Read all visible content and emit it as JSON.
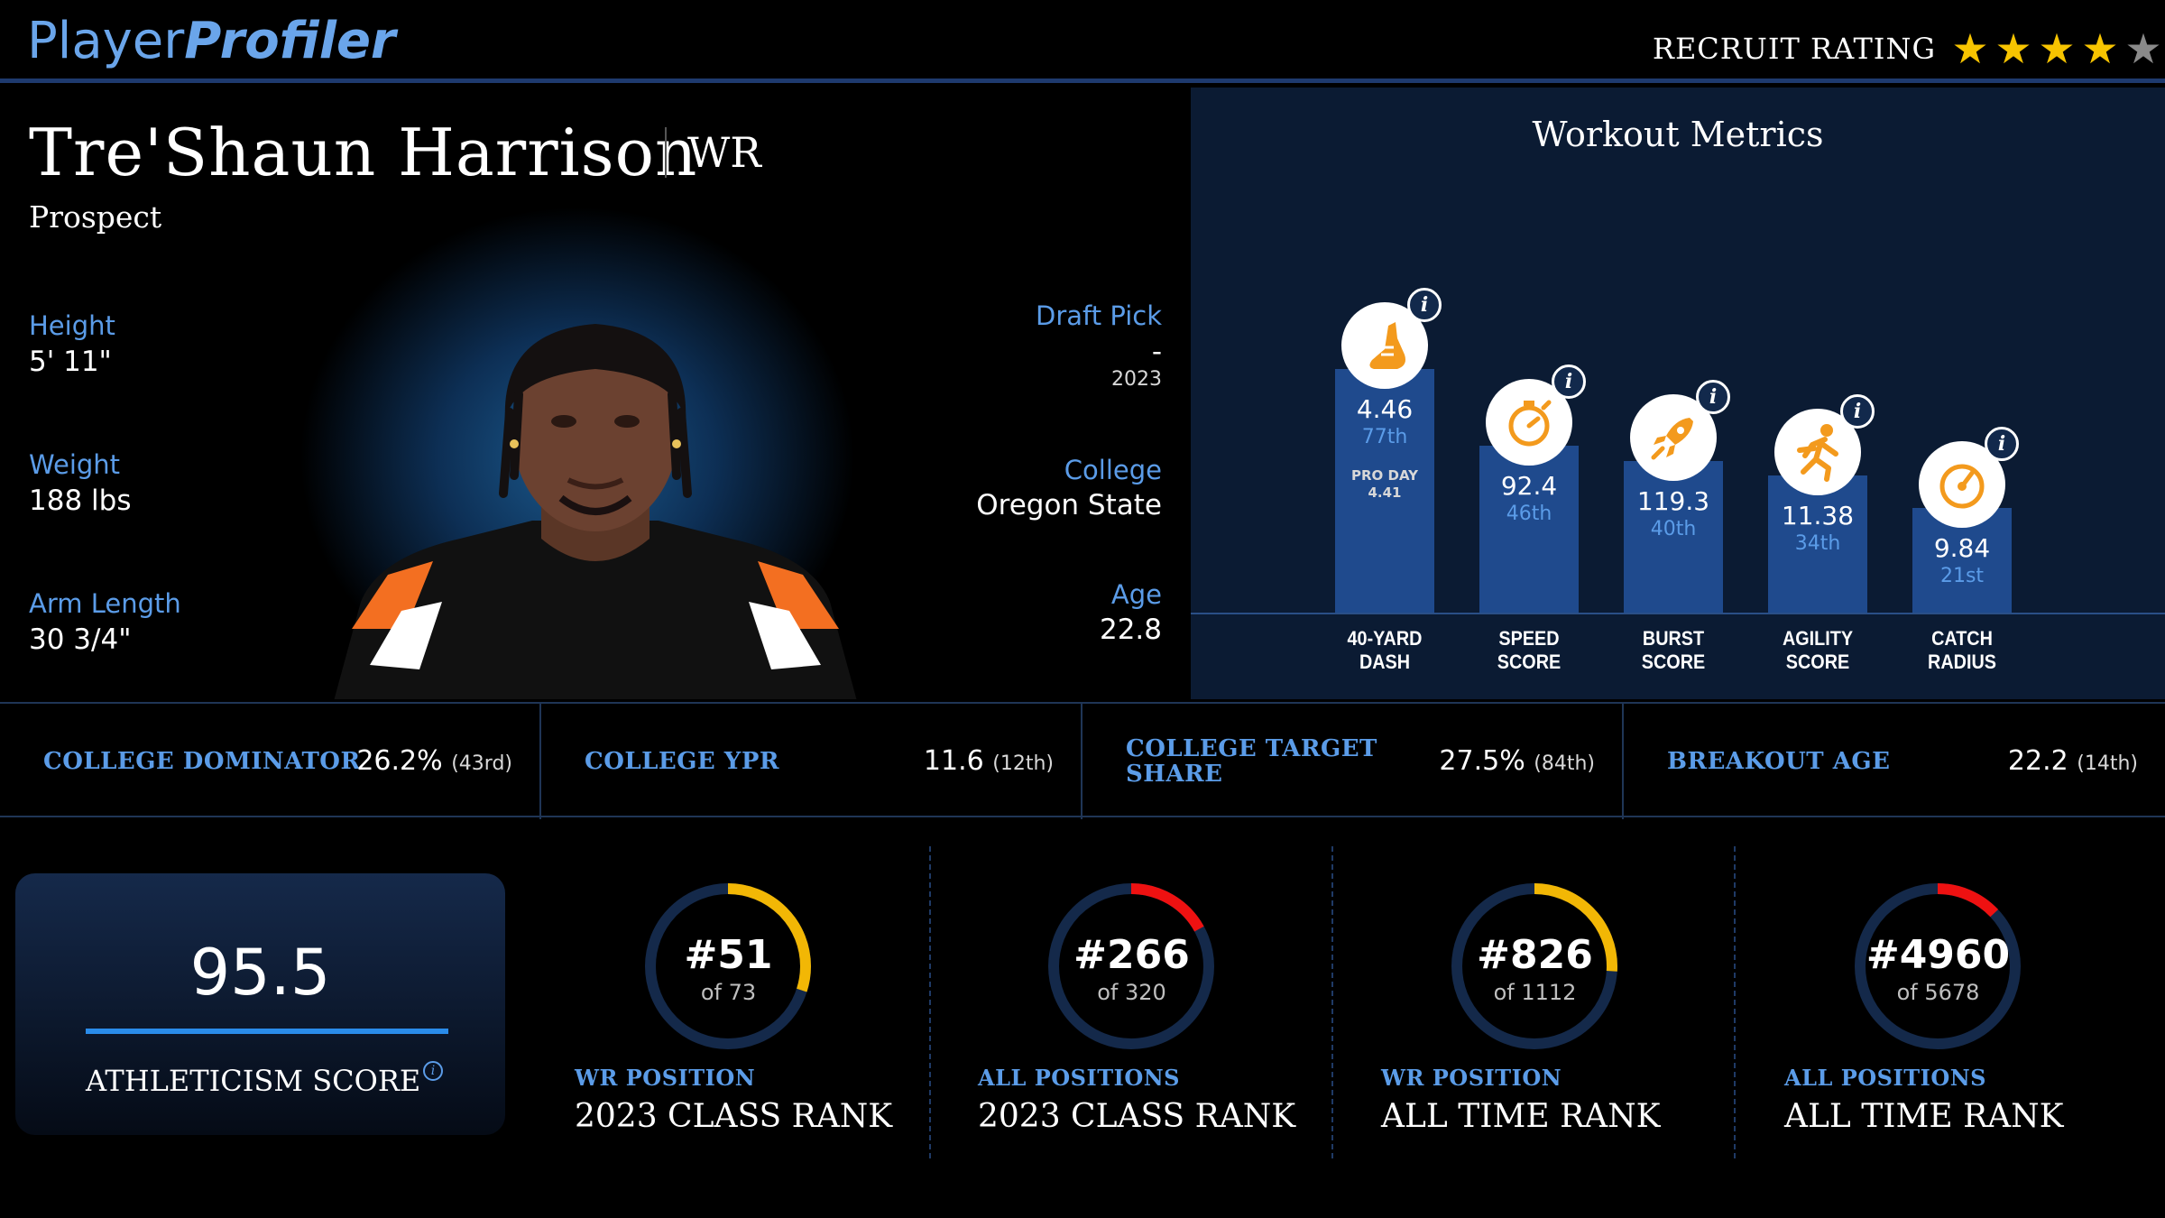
{
  "header": {
    "logo_part1": "Player",
    "logo_part2": "Profiler",
    "recruit_label": "RECRUIT RATING",
    "stars_filled": 4,
    "stars_total": 5
  },
  "player": {
    "name": "Tre'Shaun Harrison",
    "position": "WR",
    "status": "Prospect",
    "height_label": "Height",
    "height": "5' 11\"",
    "weight_label": "Weight",
    "weight": "188 lbs",
    "arm_label": "Arm Length",
    "arm": "30 3/4\"",
    "draft_label": "Draft Pick",
    "draft_pick": "-",
    "draft_year": "2023",
    "college_label": "College",
    "college": "Oregon State",
    "age_label": "Age",
    "age": "22.8"
  },
  "workout": {
    "title": "Workout Metrics",
    "metrics": [
      {
        "name_line1": "40-YARD",
        "name_line2": "DASH",
        "value": "4.46",
        "rank": "77th",
        "pro_day_label": "PRO DAY",
        "pro_day_value": "4.41",
        "percentile": 77,
        "icon": "shoe-icon"
      },
      {
        "name_line1": "SPEED",
        "name_line2": "SCORE",
        "value": "92.4",
        "rank": "46th",
        "percentile": 46,
        "icon": "stopwatch-icon"
      },
      {
        "name_line1": "BURST",
        "name_line2": "SCORE",
        "value": "119.3",
        "rank": "40th",
        "percentile": 40,
        "icon": "rocket-icon"
      },
      {
        "name_line1": "AGILITY",
        "name_line2": "SCORE",
        "value": "11.38",
        "rank": "34th",
        "percentile": 34,
        "icon": "runner-icon"
      },
      {
        "name_line1": "CATCH",
        "name_line2": "RADIUS",
        "value": "9.84",
        "rank": "21st",
        "percentile": 21,
        "icon": "target-icon"
      }
    ],
    "info_glyph": "i"
  },
  "stats": [
    {
      "label_line1": "COLLEGE DOMINATOR",
      "label_line2": "",
      "value": "26.2%",
      "rank": "(43rd)"
    },
    {
      "label_line1": "COLLEGE YPR",
      "label_line2": "",
      "value": "11.6",
      "rank": "(12th)"
    },
    {
      "label_line1": "COLLEGE TARGET",
      "label_line2": "SHARE",
      "value": "27.5%",
      "rank": "(84th)"
    },
    {
      "label_line1": "BREAKOUT AGE",
      "label_line2": "",
      "value": "22.2",
      "rank": "(14th)"
    }
  ],
  "athleticism": {
    "score": "95.5",
    "label": "ATHLETICISM SCORE",
    "info_glyph": "i"
  },
  "ranks": [
    {
      "number": "#51",
      "of": "of 73",
      "subtitle": "WR POSITION",
      "title": "2023 CLASS RANK",
      "fraction": 0.3,
      "color": "#f2b705"
    },
    {
      "number": "#266",
      "of": "of 320",
      "subtitle": "ALL POSITIONS",
      "title": "2023 CLASS RANK",
      "fraction": 0.17,
      "color": "#ee1111"
    },
    {
      "number": "#826",
      "of": "of 1112",
      "subtitle": "WR POSITION",
      "title": "ALL TIME RANK",
      "fraction": 0.26,
      "color": "#f2b705"
    },
    {
      "number": "#4960",
      "of": "of 5678",
      "subtitle": "ALL POSITIONS",
      "title": "ALL TIME RANK",
      "fraction": 0.13,
      "color": "#ee1111"
    }
  ],
  "colors": {
    "accent": "#5b9ce8",
    "bar": "#1f4a8d",
    "icon_orange": "#f39a1d"
  }
}
